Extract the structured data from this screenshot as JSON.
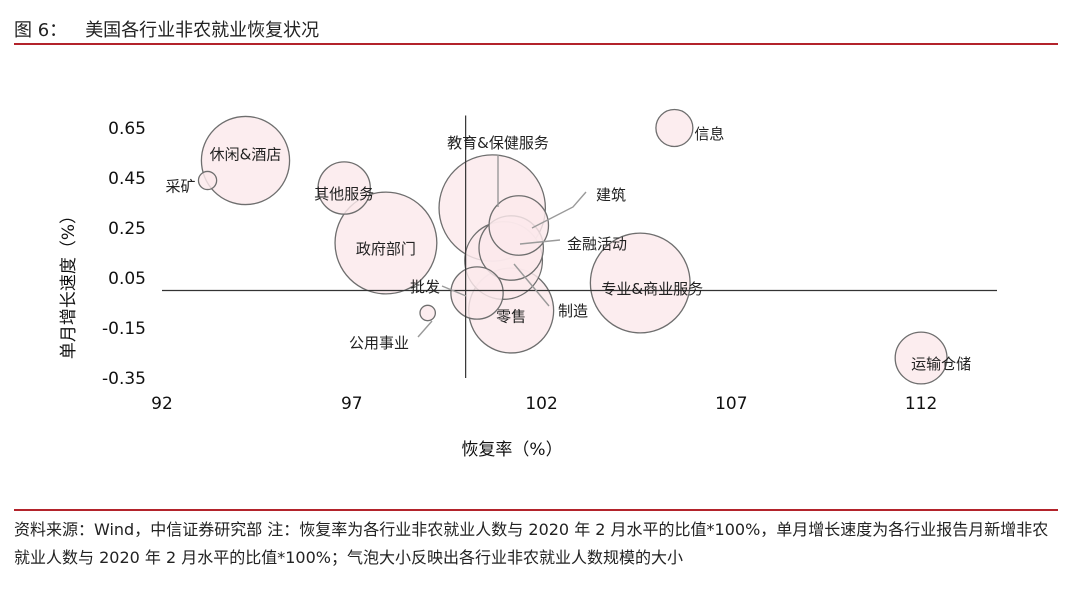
{
  "figure": {
    "number": "图 6：",
    "title": "美国各行业非农就业恢复状况"
  },
  "source_note": "资料来源：Wind，中信证券研究部   注：恢复率为各行业非农就业人数与 2020 年 2 月水平的比值*100%，单月增长速度为各行业报告月新增非农就业人数与 2020 年 2 月水平的比值*100%；气泡大小反映出各行业非农就业人数规模的大小",
  "colors": {
    "bubble_fill": "#fbe9ec",
    "bubble_stroke": "#6e6e6e",
    "accent_rule": "#b3232b",
    "leader_line": "#9a9a9a"
  },
  "chart_data": {
    "type": "scatter",
    "subtype": "bubble",
    "xlabel": "恢复率（%）",
    "ylabel": "单月增长速度（%）",
    "xlim": [
      92,
      114
    ],
    "ylim": [
      -0.35,
      0.7
    ],
    "xticks": [
      "92",
      "97",
      "102",
      "107",
      "112"
    ],
    "yticks": [
      "0.65",
      "0.45",
      "0.25",
      "0.05",
      "-0.15",
      "-0.35"
    ],
    "grid": false,
    "legend": "none",
    "points": [
      {
        "name": "采矿",
        "x": 93.2,
        "y": 0.44,
        "size": 0.7
      },
      {
        "name": "休闲&酒店",
        "x": 94.2,
        "y": 0.52,
        "size": 16.5
      },
      {
        "name": "其他服务",
        "x": 96.8,
        "y": 0.41,
        "size": 5.8
      },
      {
        "name": "政府部门",
        "x": 97.9,
        "y": 0.19,
        "size": 22.0
      },
      {
        "name": "教育&保健服务",
        "x": 100.7,
        "y": 0.33,
        "size": 24.0
      },
      {
        "name": "建筑",
        "x": 101.4,
        "y": 0.26,
        "size": 7.5
      },
      {
        "name": "金融活动",
        "x": 101.2,
        "y": 0.17,
        "size": 8.8
      },
      {
        "name": "制造",
        "x": 101.0,
        "y": 0.12,
        "size": 12.8
      },
      {
        "name": "批发",
        "x": 100.3,
        "y": -0.01,
        "size": 5.8
      },
      {
        "name": "公用事业",
        "x": 99.0,
        "y": -0.09,
        "size": 0.5
      },
      {
        "name": "零售",
        "x": 101.2,
        "y": -0.08,
        "size": 15.3
      },
      {
        "name": "信息",
        "x": 105.5,
        "y": 0.65,
        "size": 2.9
      },
      {
        "name": "专业&商业服务",
        "x": 104.6,
        "y": 0.03,
        "size": 21.1
      },
      {
        "name": "运输仓储",
        "x": 112.0,
        "y": -0.27,
        "size": 5.7
      }
    ]
  }
}
